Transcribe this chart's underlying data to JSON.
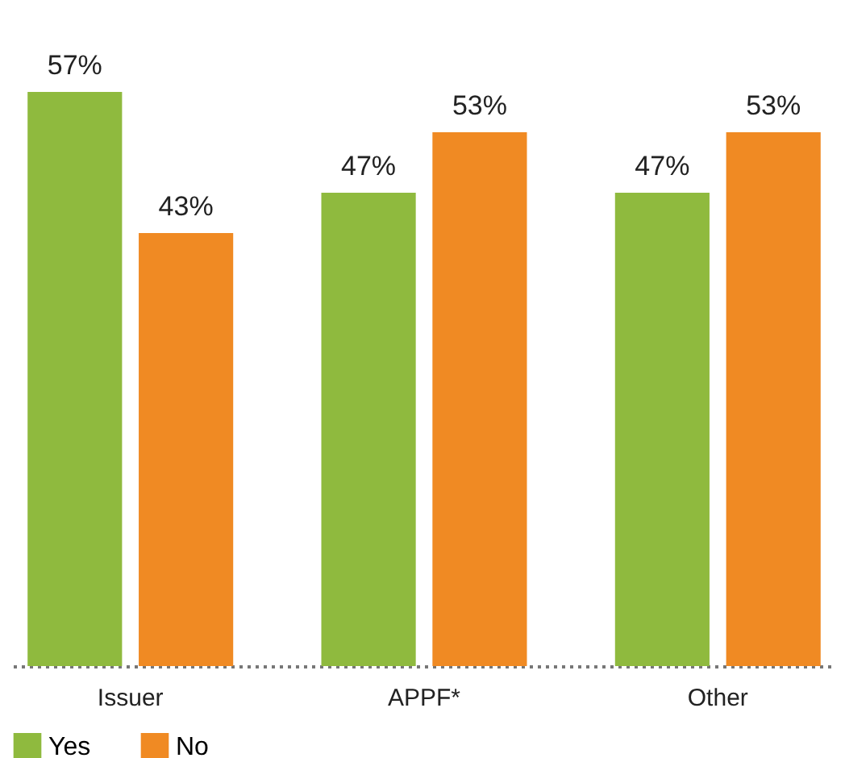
{
  "chart_data": {
    "type": "bar",
    "categories": [
      "Issuer",
      "APPF*",
      "Other"
    ],
    "series": [
      {
        "name": "Yes",
        "color": "#8fba3e",
        "values": [
          57,
          47,
          47
        ],
        "value_labels": [
          "57%",
          "47%",
          "47%"
        ]
      },
      {
        "name": "No",
        "color": "#f08a23",
        "values": [
          43,
          53,
          53
        ],
        "value_labels": [
          "43%",
          "53%",
          "53%"
        ]
      }
    ],
    "legend": "bottom"
  }
}
